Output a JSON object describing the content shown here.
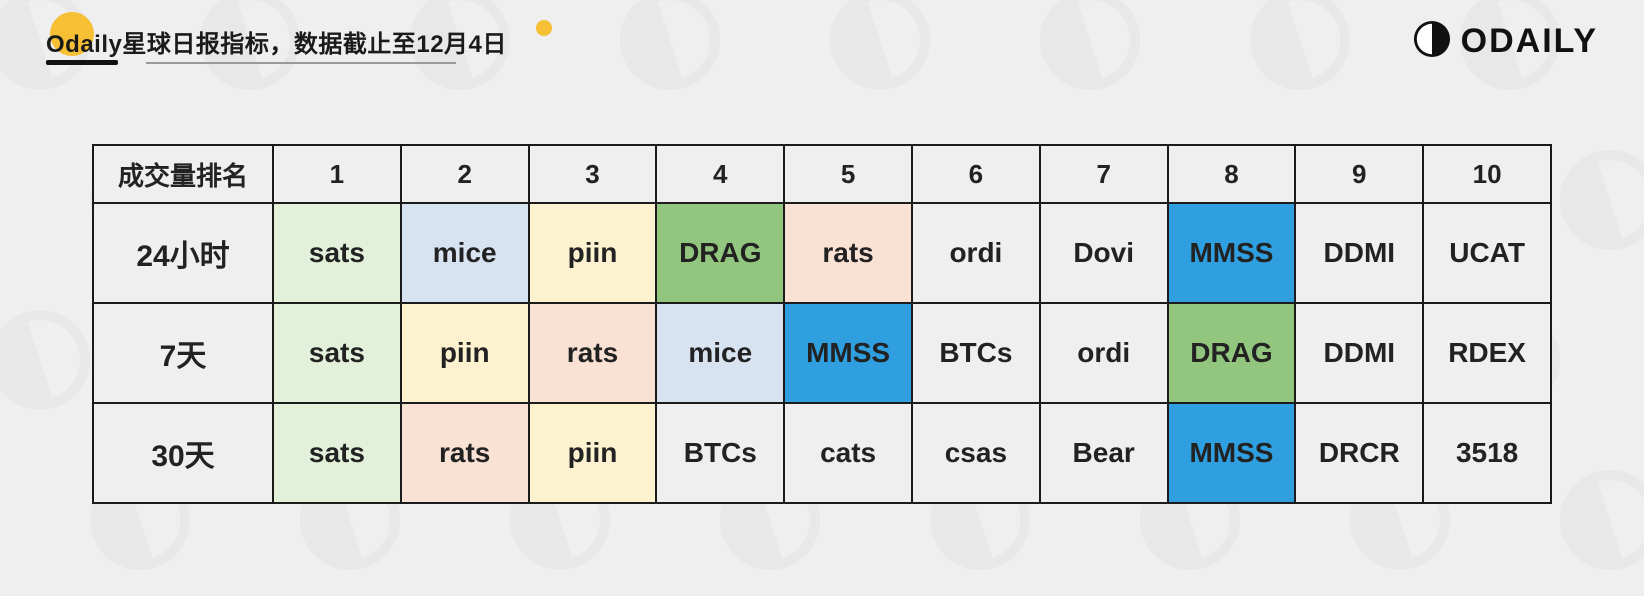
{
  "colors": {
    "page_bg": "#efefef",
    "border": "#1b1b1b",
    "text": "#222222",
    "accent_yellow": "#f7bf34",
    "watermark": "#7a7a7a",
    "brand_black": "#111111",
    "cell_default": "#efefef",
    "cell_light_green": "#e3f1db",
    "cell_light_blue": "#d8e3f2",
    "cell_cream": "#fdf2d0",
    "cell_peach": "#f9e1d3",
    "cell_green": "#92c57e",
    "cell_bright_blue": "#2f9fe0"
  },
  "title": "Odaily星球日报指标，数据截止至12月4日",
  "brand": "ODAILY",
  "table": {
    "type": "table",
    "header_first": "成交量排名",
    "rank_columns": [
      "1",
      "2",
      "3",
      "4",
      "5",
      "6",
      "7",
      "8",
      "9",
      "10"
    ],
    "rows": [
      {
        "label": "24小时",
        "cells": [
          {
            "text": "sats",
            "bg": "cell_light_green"
          },
          {
            "text": "mice",
            "bg": "cell_light_blue"
          },
          {
            "text": "piin",
            "bg": "cell_cream"
          },
          {
            "text": "DRAG",
            "bg": "cell_green"
          },
          {
            "text": "rats",
            "bg": "cell_peach"
          },
          {
            "text": "ordi",
            "bg": "cell_default"
          },
          {
            "text": "Dovi",
            "bg": "cell_default"
          },
          {
            "text": "MMSS",
            "bg": "cell_bright_blue"
          },
          {
            "text": "DDMI",
            "bg": "cell_default"
          },
          {
            "text": "UCAT",
            "bg": "cell_default"
          }
        ]
      },
      {
        "label": "7天",
        "cells": [
          {
            "text": "sats",
            "bg": "cell_light_green"
          },
          {
            "text": "piin",
            "bg": "cell_cream"
          },
          {
            "text": "rats",
            "bg": "cell_peach"
          },
          {
            "text": "mice",
            "bg": "cell_light_blue"
          },
          {
            "text": "MMSS",
            "bg": "cell_bright_blue"
          },
          {
            "text": "BTCs",
            "bg": "cell_default"
          },
          {
            "text": "ordi",
            "bg": "cell_default"
          },
          {
            "text": "DRAG",
            "bg": "cell_green"
          },
          {
            "text": "DDMI",
            "bg": "cell_default"
          },
          {
            "text": "RDEX",
            "bg": "cell_default"
          }
        ]
      },
      {
        "label": "30天",
        "cells": [
          {
            "text": "sats",
            "bg": "cell_light_green"
          },
          {
            "text": "rats",
            "bg": "cell_peach"
          },
          {
            "text": "piin",
            "bg": "cell_cream"
          },
          {
            "text": "BTCs",
            "bg": "cell_default"
          },
          {
            "text": "cats",
            "bg": "cell_default"
          },
          {
            "text": "csas",
            "bg": "cell_default"
          },
          {
            "text": "Bear",
            "bg": "cell_default"
          },
          {
            "text": "MMSS",
            "bg": "cell_bright_blue"
          },
          {
            "text": "DRCR",
            "bg": "cell_default"
          },
          {
            "text": "3518",
            "bg": "cell_default"
          }
        ]
      }
    ]
  }
}
